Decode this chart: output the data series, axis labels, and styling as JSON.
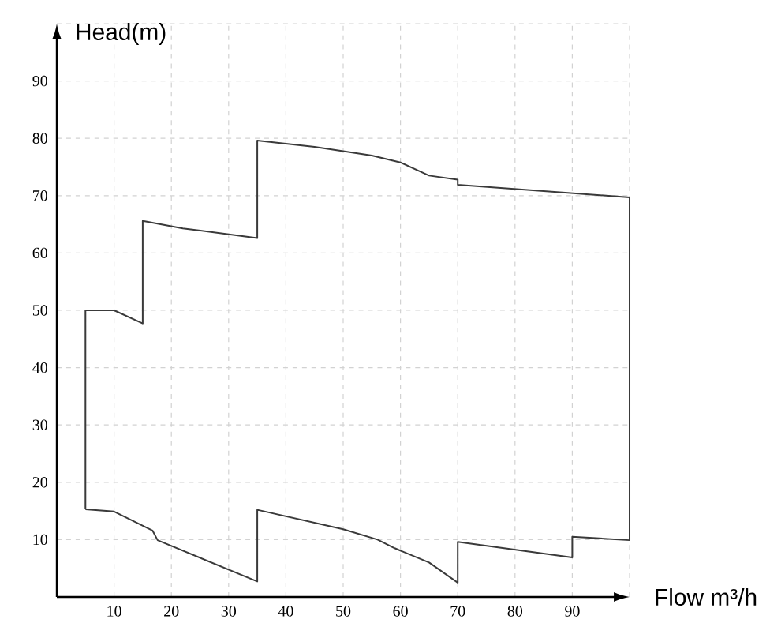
{
  "chart_data": {
    "type": "line",
    "xlabel": "Flow m³/h",
    "ylabel": "Head(m)",
    "xlim": [
      0,
      100
    ],
    "ylim": [
      0,
      100
    ],
    "xticks": [
      10,
      20,
      30,
      40,
      50,
      60,
      70,
      80,
      90,
      {
        "value": 100,
        "label": null
      }
    ],
    "yticks": [
      10,
      20,
      30,
      40,
      50,
      60,
      70,
      80,
      90,
      {
        "value": 100,
        "label": null
      }
    ],
    "grid": true,
    "line_style": "solid",
    "series": [
      {
        "color": "#3a3a3a",
        "x": [
          5,
          5,
          10,
          15,
          15,
          22,
          35,
          35,
          45,
          55,
          60,
          65,
          70,
          70,
          100,
          100
        ],
        "values": [
          15.3,
          50,
          50,
          47.7,
          65.6,
          64.3,
          62.6,
          79.6,
          78.5,
          77,
          75.8,
          73.5,
          72.8,
          71.9,
          69.7,
          9.9
        ]
      },
      {
        "color": "#3a3a3a",
        "x": [
          5,
          10,
          16.7,
          17.6,
          35,
          35,
          50,
          56,
          59,
          65,
          70,
          70,
          90,
          90,
          100
        ],
        "values": [
          15.3,
          14.9,
          11.6,
          9.9,
          2.7,
          15.2,
          11.8,
          10,
          8.5,
          6,
          2.5,
          9.6,
          6.9,
          10.5,
          9.9
        ]
      }
    ]
  }
}
